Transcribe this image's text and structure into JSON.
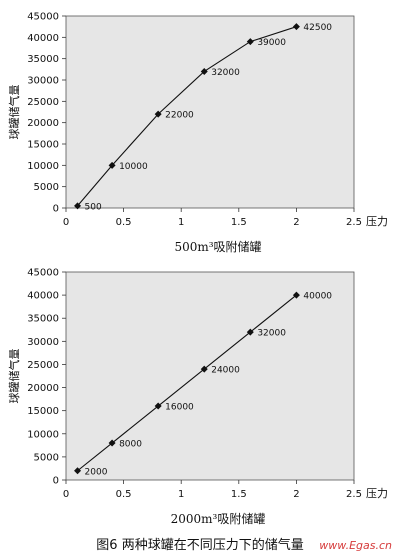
{
  "figure": {
    "title": "图6  两种球罐在不同压力下的储气量",
    "watermark": "www.Egas.cn"
  },
  "chart_data": [
    {
      "type": "line",
      "subtitle": "500m³吸附储罐",
      "xlabel": "压力",
      "ylabel": "球罐储气量",
      "xlim": [
        0,
        2.5
      ],
      "ylim": [
        0,
        45000
      ],
      "x_ticks": [
        "0",
        "0.5",
        "1",
        "1.5",
        "2",
        "2.5"
      ],
      "y_ticks": [
        "0",
        "5000",
        "10000",
        "15000",
        "20000",
        "25000",
        "30000",
        "35000",
        "40000",
        "45000"
      ],
      "grid": false,
      "x": [
        0.1,
        0.4,
        0.8,
        1.2,
        1.6,
        2.0
      ],
      "y": [
        500,
        10000,
        22000,
        32000,
        39000,
        42500
      ],
      "labels": [
        "500",
        "10000",
        "22000",
        "32000",
        "39000",
        "42500"
      ]
    },
    {
      "type": "line",
      "subtitle": "2000m³吸附储罐",
      "xlabel": "压力",
      "ylabel": "球罐储气量",
      "xlim": [
        0,
        2.5
      ],
      "ylim": [
        0,
        45000
      ],
      "x_ticks": [
        "0",
        "0.5",
        "1",
        "1.5",
        "2",
        "2.5"
      ],
      "y_ticks": [
        "0",
        "5000",
        "10000",
        "15000",
        "20000",
        "25000",
        "30000",
        "35000",
        "40000",
        "45000"
      ],
      "grid": false,
      "x": [
        0.1,
        0.4,
        0.8,
        1.2,
        1.6,
        2.0
      ],
      "y": [
        2000,
        8000,
        16000,
        24000,
        32000,
        40000
      ],
      "labels": [
        "2000",
        "8000",
        "16000",
        "24000",
        "32000",
        "40000"
      ]
    }
  ]
}
